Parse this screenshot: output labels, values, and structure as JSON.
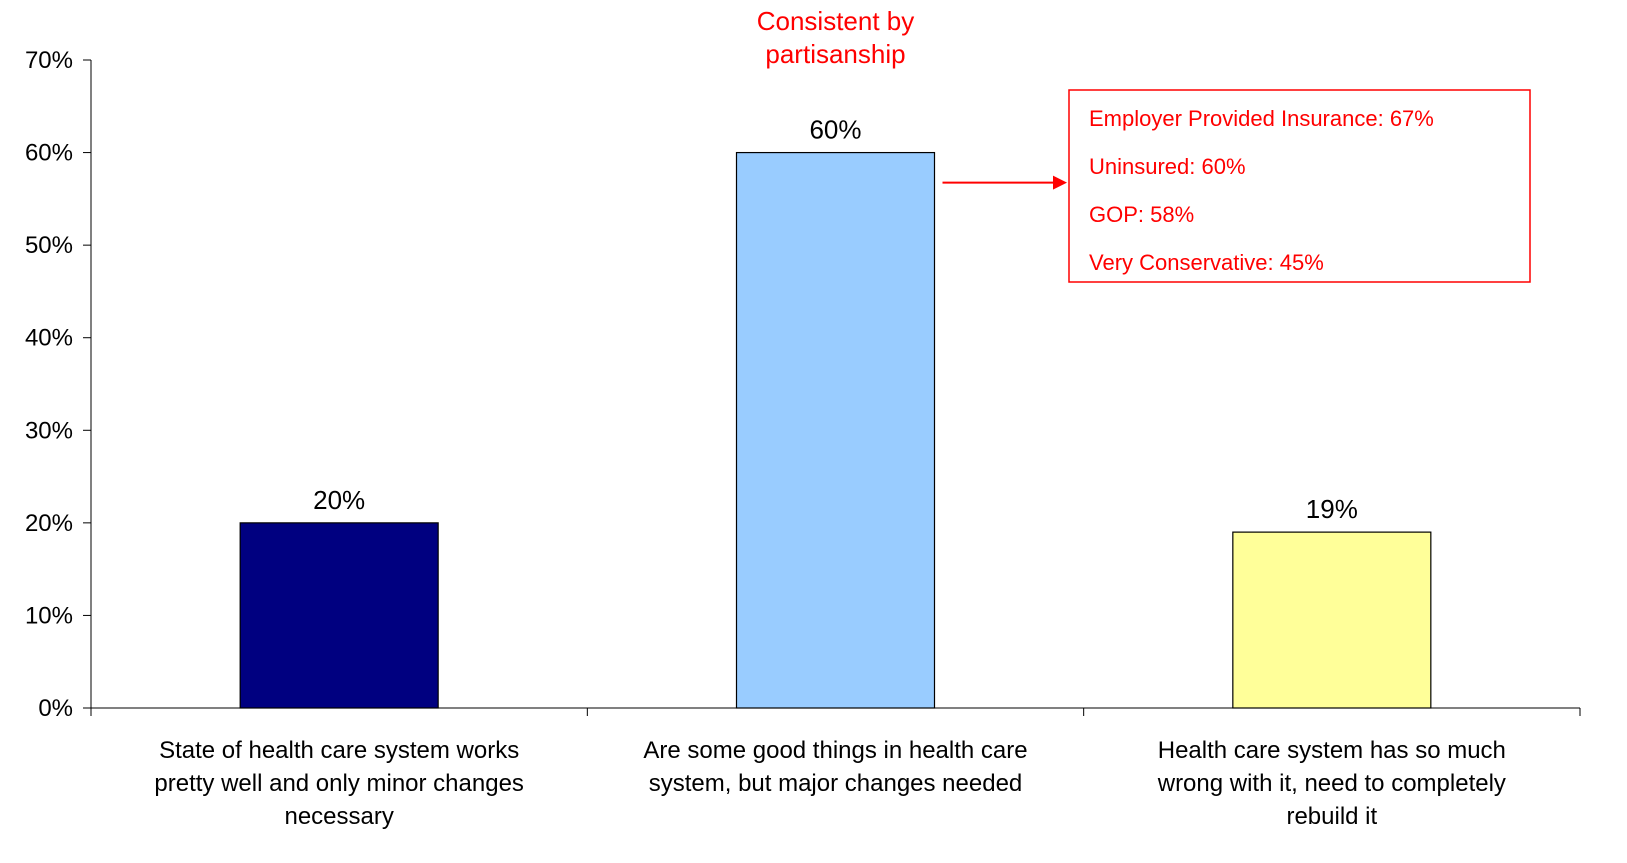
{
  "chart_data": {
    "type": "bar",
    "categories": [
      [
        "State of health care system works",
        "pretty well and only minor changes",
        "necessary"
      ],
      [
        "Are some good things in health care",
        "system, but major changes needed"
      ],
      [
        "Health care system has so much",
        "wrong with it, need to completely",
        "rebuild it"
      ]
    ],
    "values": [
      20,
      60,
      19
    ],
    "value_labels": [
      "20%",
      "60%",
      "19%"
    ],
    "bar_colors": [
      "#000080",
      "#99ccff",
      "#ffff99"
    ],
    "ylim": [
      0,
      70
    ],
    "y_ticks": [
      0,
      10,
      20,
      30,
      40,
      50,
      60,
      70
    ],
    "y_tick_labels": [
      "0%",
      "10%",
      "20%",
      "30%",
      "40%",
      "50%",
      "60%",
      "70%"
    ],
    "grid": false,
    "legend": "none",
    "annotation": {
      "title_lines": [
        "Consistent by",
        "partisanship"
      ],
      "color": "#ff0000",
      "callout_items": [
        "Employer Provided Insurance: 67%",
        "Uninsured: 60%",
        "GOP: 58%",
        "Very Conservative: 45%"
      ]
    }
  }
}
